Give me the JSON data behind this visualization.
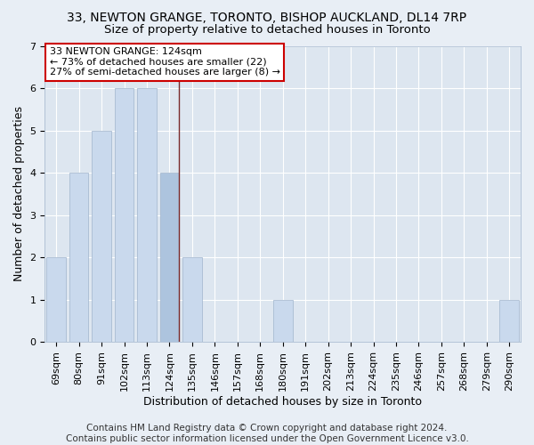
{
  "title": "33, NEWTON GRANGE, TORONTO, BISHOP AUCKLAND, DL14 7RP",
  "subtitle": "Size of property relative to detached houses in Toronto",
  "xlabel": "Distribution of detached houses by size in Toronto",
  "ylabel": "Number of detached properties",
  "categories": [
    "69sqm",
    "80sqm",
    "91sqm",
    "102sqm",
    "113sqm",
    "124sqm",
    "135sqm",
    "146sqm",
    "157sqm",
    "168sqm",
    "180sqm",
    "191sqm",
    "202sqm",
    "213sqm",
    "224sqm",
    "235sqm",
    "246sqm",
    "257sqm",
    "268sqm",
    "279sqm",
    "290sqm"
  ],
  "values": [
    2,
    4,
    5,
    6,
    6,
    4,
    2,
    0,
    0,
    0,
    1,
    0,
    0,
    0,
    0,
    0,
    0,
    0,
    0,
    0,
    1
  ],
  "highlight_index": 5,
  "bar_color_normal": "#c9d9ed",
  "bar_color_highlight": "#adc4de",
  "bar_edgecolor": "#a0b4cc",
  "vline_color": "#7a2a2a",
  "annotation_box_text": "33 NEWTON GRANGE: 124sqm\n← 73% of detached houses are smaller (22)\n27% of semi-detached houses are larger (8) →",
  "annotation_box_color": "#ffffff",
  "annotation_box_edgecolor": "#cc0000",
  "ylim": [
    0,
    7
  ],
  "yticks": [
    0,
    1,
    2,
    3,
    4,
    5,
    6,
    7
  ],
  "footer_text": "Contains HM Land Registry data © Crown copyright and database right 2024.\nContains public sector information licensed under the Open Government Licence v3.0.",
  "background_color": "#e8eef5",
  "plot_background_color": "#dde6f0",
  "grid_color": "#ffffff",
  "title_fontsize": 10,
  "subtitle_fontsize": 9.5,
  "xlabel_fontsize": 9,
  "ylabel_fontsize": 9,
  "footer_fontsize": 7.5,
  "tick_fontsize": 8,
  "annotation_fontsize": 8
}
